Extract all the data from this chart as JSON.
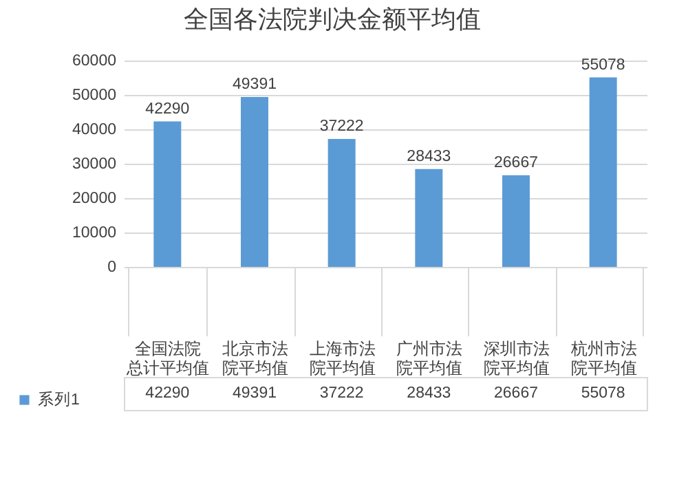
{
  "chart_data": {
    "type": "bar",
    "title": "全国各法院判决金额平均值",
    "categories": [
      "全国法院总计平均值",
      "北京市法院平均值",
      "上海市法院平均值",
      "广州市法院平均值",
      "深圳市法院平均值",
      "杭州市法院平均值"
    ],
    "series": [
      {
        "name": "系列1",
        "color": "#5b9bd5",
        "values": [
          42290,
          49391,
          37222,
          28433,
          26667,
          55078
        ]
      }
    ],
    "annotations": [
      {
        "text": "42290",
        "x": "全国法院总计平均值",
        "y": 42290
      },
      {
        "text": "49391",
        "x": "北京市法院平均值",
        "y": 49391
      },
      {
        "text": "37222",
        "x": "上海市法院平均值",
        "y": 37222
      },
      {
        "text": "28433",
        "x": "广州市法院平均值",
        "y": 28433
      },
      {
        "text": "26667",
        "x": "深圳市法院平均值",
        "y": 26667
      },
      {
        "text": "55078",
        "x": "杭州市法院平均值",
        "y": 55078
      }
    ],
    "ylim": [
      0,
      60000
    ],
    "yticks": [
      0,
      10000,
      20000,
      30000,
      40000,
      50000,
      60000
    ],
    "grid": "y",
    "data_labels": true,
    "legend": "bottom left"
  }
}
